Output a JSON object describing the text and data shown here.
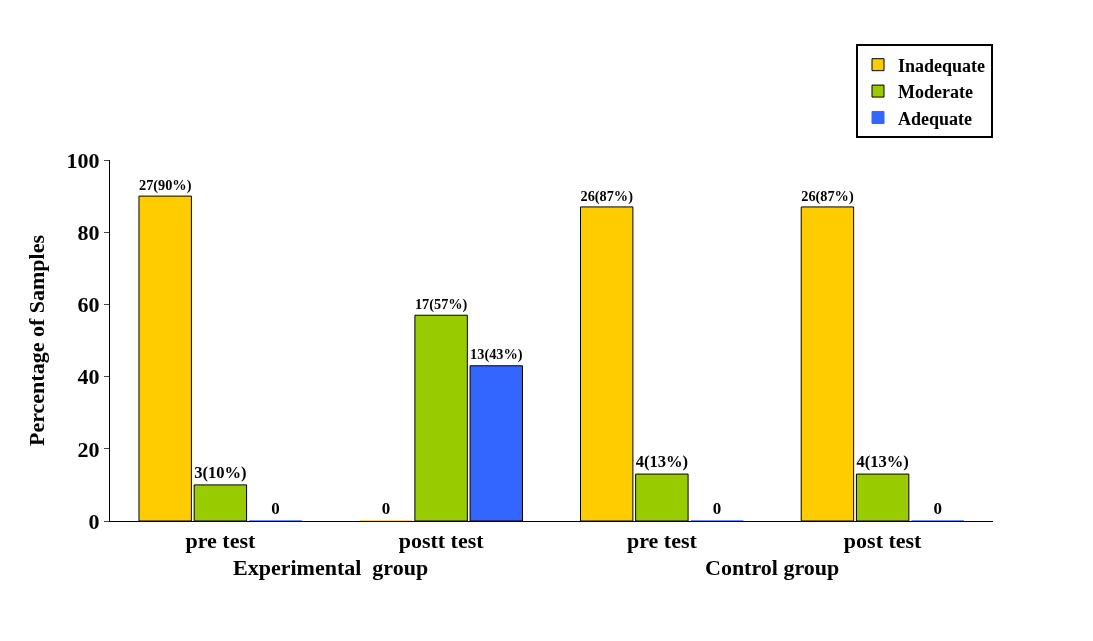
{
  "chart_data": {
    "type": "bar",
    "categories": [
      "pre test",
      "postt test",
      "pre test",
      "post test"
    ],
    "ylabel": "Percentage of Samples",
    "series": [
      {
        "name": "Inadequate",
        "color": "#ffcc00",
        "values": [
          90,
          0,
          87,
          87
        ],
        "value_labels": [
          "27(90%)",
          "0",
          "26(87%)",
          "26(87%)"
        ]
      },
      {
        "name": "Moderate",
        "color": "#99cc00",
        "values": [
          10,
          57,
          13,
          13
        ],
        "value_labels": [
          "3(10%)",
          "17(57%)",
          "4(13%)",
          "4(13%)"
        ]
      },
      {
        "name": "Adequate",
        "color": "#3366ff",
        "values": [
          0,
          43,
          0,
          0
        ],
        "value_labels": [
          "0",
          "13(43%)",
          "0",
          "0"
        ]
      }
    ],
    "ylim": [
      0,
      100
    ],
    "yticks": [
      0,
      20,
      40,
      60,
      80,
      100
    ],
    "legend": "top right",
    "annotations": [
      "Experimental  group",
      "Control group"
    ]
  }
}
